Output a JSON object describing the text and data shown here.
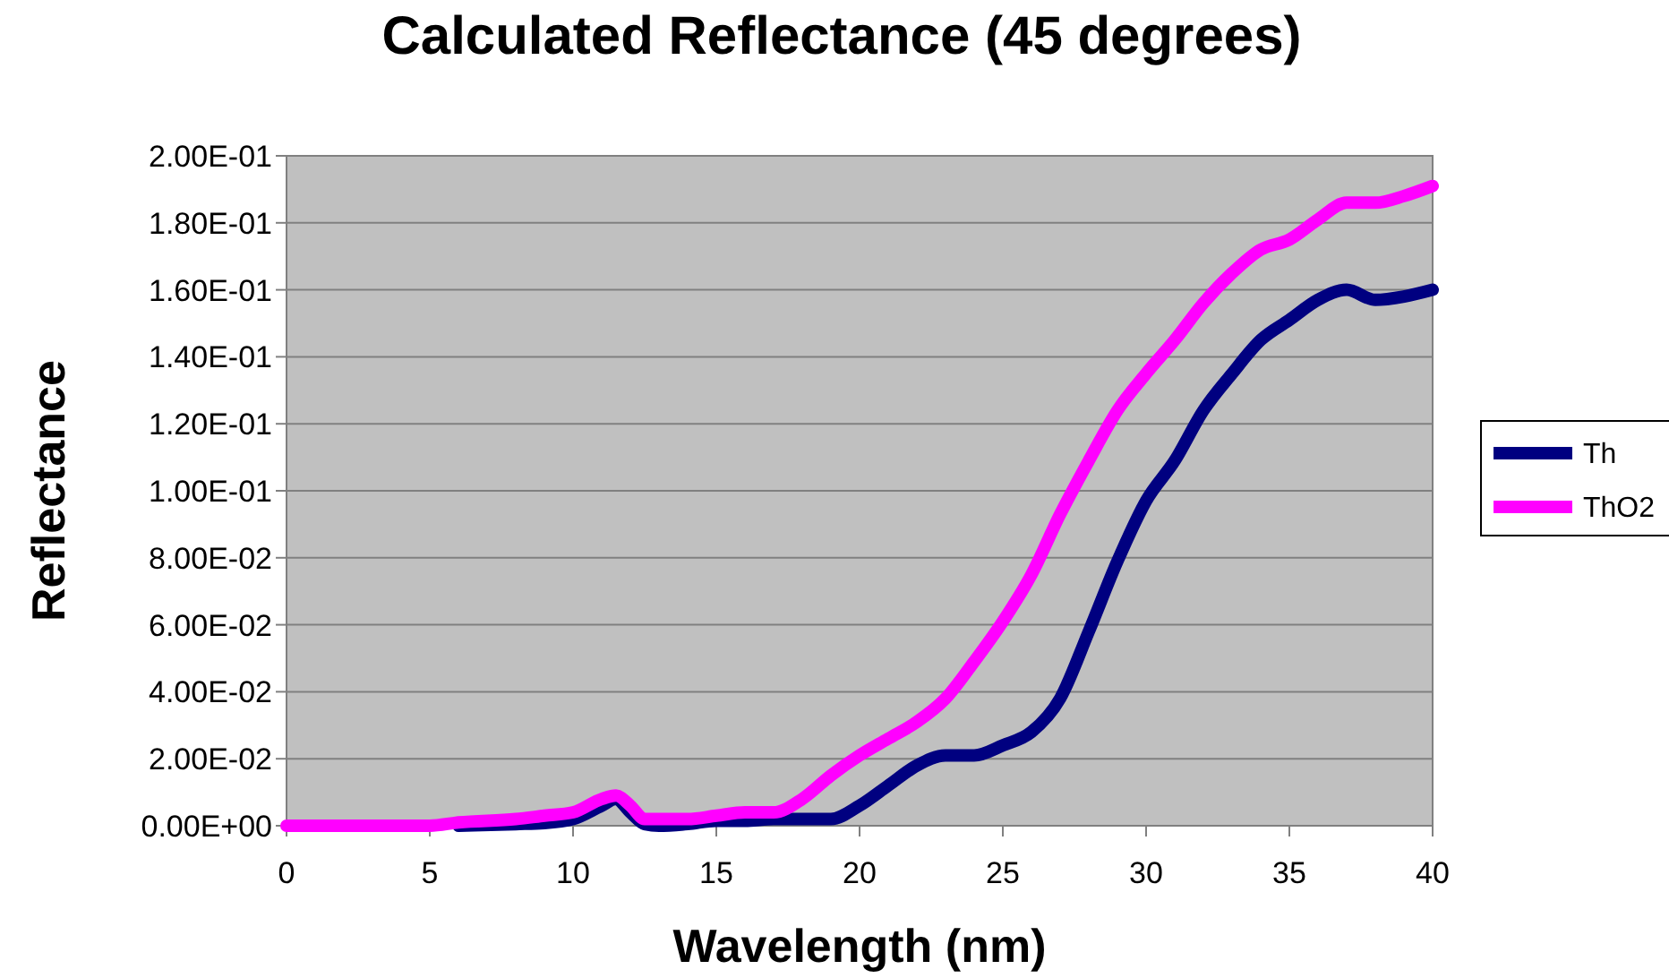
{
  "chart_data": {
    "type": "line",
    "title": "Calculated Reflectance (45 degrees)",
    "xlabel": "Wavelength (nm)",
    "ylabel": "Reflectance",
    "x": [
      0,
      5,
      6,
      8,
      9,
      10,
      11,
      11.5,
      12,
      12.5,
      13,
      14,
      15,
      16,
      17,
      18,
      19,
      20,
      21,
      22,
      23,
      24,
      25,
      26,
      27,
      28,
      29,
      30,
      31,
      32,
      33,
      34,
      35,
      36,
      37,
      38,
      39,
      40
    ],
    "series": [
      {
        "name": "Th",
        "color": "#000080",
        "values": [
          null,
          null,
          0,
          0.0005,
          0.0008,
          0.002,
          0.006,
          0.008,
          0.004,
          0.0005,
          0,
          0.0005,
          0.0015,
          0.0015,
          0.002,
          0.002,
          0.002,
          0.006,
          0.012,
          0.018,
          0.021,
          0.021,
          0.024,
          0.028,
          0.038,
          0.058,
          0.079,
          0.097,
          0.109,
          0.124,
          0.135,
          0.145,
          0.151,
          0.157,
          0.16,
          0.157,
          0.158,
          0.16
        ]
      },
      {
        "name": "ThO2",
        "color": "#ff00ff",
        "values": [
          0,
          0,
          0.001,
          0.002,
          0.003,
          0.004,
          0.008,
          0.009,
          0.006,
          0.002,
          0.002,
          0.002,
          0.003,
          0.004,
          0.004,
          0.008,
          0.015,
          0.021,
          0.026,
          0.031,
          0.038,
          0.049,
          0.061,
          0.075,
          0.093,
          0.109,
          0.124,
          0.135,
          0.145,
          0.156,
          0.165,
          0.172,
          0.175,
          0.181,
          0.186,
          0.186,
          0.188,
          0.191
        ]
      }
    ],
    "xlim": [
      0,
      40
    ],
    "xticks": [
      0,
      5,
      10,
      15,
      20,
      25,
      30,
      35,
      40
    ],
    "ylim": [
      0,
      0.2
    ],
    "yticks": [
      {
        "value": 0,
        "label": "0.00E+00"
      },
      {
        "value": 0.02,
        "label": "2.00E-02"
      },
      {
        "value": 0.04,
        "label": "4.00E-02"
      },
      {
        "value": 0.06,
        "label": "6.00E-02"
      },
      {
        "value": 0.08,
        "label": "8.00E-02"
      },
      {
        "value": 0.1,
        "label": "1.00E-01"
      },
      {
        "value": 0.12,
        "label": "1.20E-01"
      },
      {
        "value": 0.14,
        "label": "1.40E-01"
      },
      {
        "value": 0.16,
        "label": "1.60E-01"
      },
      {
        "value": 0.18,
        "label": "1.80E-01"
      },
      {
        "value": 0.2,
        "label": "2.00E-01"
      }
    ],
    "grid": "y",
    "legend": "right",
    "marker": "none",
    "line_style": "solid"
  }
}
